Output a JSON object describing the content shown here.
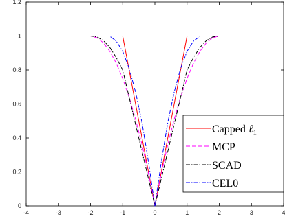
{
  "chart_data": {
    "type": "line",
    "title": "",
    "xlabel": "",
    "ylabel": "",
    "xlim": [
      -4,
      4
    ],
    "ylim": [
      0,
      1.2
    ],
    "x_ticks": [
      "-4",
      "-3",
      "-2",
      "-1",
      "0",
      "1",
      "2",
      "3",
      "4"
    ],
    "y_ticks": [
      "0",
      "0.2",
      "0.4",
      "0.6",
      "0.8",
      "1",
      "1.2"
    ],
    "grid": false,
    "legend_position": "bottom-right",
    "series": [
      {
        "name": "Capped ℓ1",
        "color": "#ff0000",
        "dash": "solid",
        "x": [
          -4,
          -1,
          0,
          1,
          4
        ],
        "y": [
          1,
          1,
          0,
          1,
          1
        ]
      },
      {
        "name": "MCP",
        "color": "#ff00ff",
        "dash": "dashed",
        "x": [
          -4,
          -2,
          -1.8,
          -1.6,
          -1.4,
          -1.2,
          -1,
          -0.8,
          -0.6,
          -0.4,
          -0.2,
          0,
          0.2,
          0.4,
          0.6,
          0.8,
          1,
          1.2,
          1.4,
          1.6,
          1.8,
          2,
          4
        ],
        "y": [
          1,
          1,
          0.99,
          0.96,
          0.91,
          0.84,
          0.75,
          0.64,
          0.51,
          0.36,
          0.19,
          0,
          0.19,
          0.36,
          0.51,
          0.64,
          0.75,
          0.84,
          0.91,
          0.96,
          0.99,
          1,
          1
        ]
      },
      {
        "name": "SCAD",
        "color": "#000000",
        "dash": "dashdot",
        "x": [
          -4,
          -2,
          -1.8,
          -1.6,
          -1.4,
          -1.2,
          -1,
          -0.5,
          0,
          0.5,
          1,
          1.2,
          1.4,
          1.6,
          1.8,
          2,
          4
        ],
        "y": [
          1,
          1,
          0.995,
          0.973,
          0.933,
          0.873,
          0.8,
          0.4,
          0,
          0.4,
          0.8,
          0.873,
          0.933,
          0.973,
          0.995,
          1,
          1
        ]
      },
      {
        "name": "CEL0",
        "color": "#0000ff",
        "dash": "dashdot",
        "x": [
          -4,
          -1.41,
          -1.2,
          -1,
          -0.8,
          -0.6,
          -0.4,
          -0.2,
          0,
          0.2,
          0.4,
          0.6,
          0.8,
          1,
          1.2,
          1.41,
          4
        ],
        "y": [
          1,
          1,
          0.97,
          0.91,
          0.81,
          0.67,
          0.49,
          0.26,
          0,
          0.26,
          0.49,
          0.67,
          0.81,
          0.91,
          0.97,
          1,
          1
        ]
      }
    ]
  },
  "legend": {
    "capped_l1": {
      "text": "Capped ",
      "ell": "ℓ",
      "sub": "1"
    },
    "mcp": "MCP",
    "scad": "SCAD",
    "cel0": "CEL0"
  }
}
